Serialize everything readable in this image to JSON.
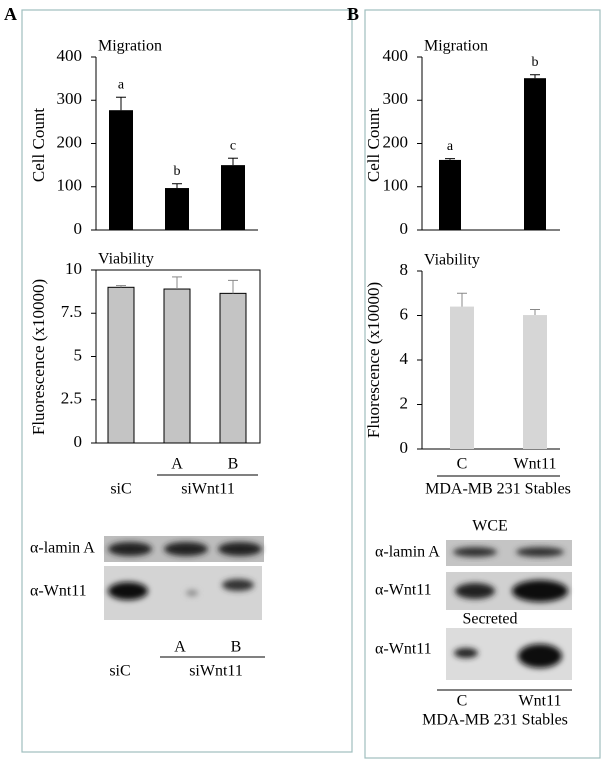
{
  "panel_labels": [
    "A",
    "B"
  ],
  "chart_data": [
    {
      "type": "bar",
      "title": "Migration",
      "y_label": "Cell Count",
      "values": [
        277,
        97,
        150
      ],
      "errors": [
        30,
        10,
        16
      ],
      "annotations": [
        "a",
        "b",
        "c"
      ],
      "ylim": [
        0,
        400
      ],
      "yticks": [
        0,
        100,
        200,
        300,
        400
      ],
      "color": "#000000",
      "frame": false
    },
    {
      "type": "bar",
      "title": "Viability",
      "y_label": "Fluorescence (x10000)",
      "categories": [
        "siC",
        "A",
        "B"
      ],
      "group_label": "siWnt11",
      "values": [
        9.0,
        8.9,
        8.65
      ],
      "errors": [
        0.1,
        0.7,
        0.75
      ],
      "ylim": [
        0,
        10
      ],
      "yticks": [
        0,
        2.5,
        5,
        7.5,
        10
      ],
      "color": "#c4c4c4",
      "frame": true
    },
    {
      "type": "bar",
      "title": "Migration",
      "y_label": "Cell Count",
      "values": [
        162,
        351
      ],
      "errors": [
        3,
        8
      ],
      "annotations": [
        "a",
        "b"
      ],
      "ylim": [
        0,
        400
      ],
      "yticks": [
        0,
        100,
        200,
        300,
        400
      ],
      "color": "#000000",
      "frame": false
    },
    {
      "type": "bar",
      "title": "Viability",
      "y_label": "Fluorescence (x10000)",
      "categories": [
        "C",
        "Wnt11"
      ],
      "group_label": "MDA-MB 231 Stables",
      "values": [
        6.4,
        6.02
      ],
      "errors": [
        0.6,
        0.25
      ],
      "ylim": [
        0,
        8
      ],
      "yticks": [
        0,
        2,
        4,
        6,
        8
      ],
      "color": "#d6d6d6",
      "frame": false
    }
  ],
  "blots": {
    "A": {
      "rows": [
        "α-lamin A",
        "α-Wnt11"
      ],
      "lanes": [
        "siC",
        "A",
        "B"
      ],
      "group_label": "siWnt11"
    },
    "B": {
      "sections": [
        "WCE",
        "Secreted"
      ],
      "rows": [
        "α-lamin A",
        "α-Wnt11",
        "α-Wnt11"
      ],
      "lanes": [
        "C",
        "Wnt11"
      ],
      "group_label": "MDA-MB 231 Stables"
    }
  }
}
